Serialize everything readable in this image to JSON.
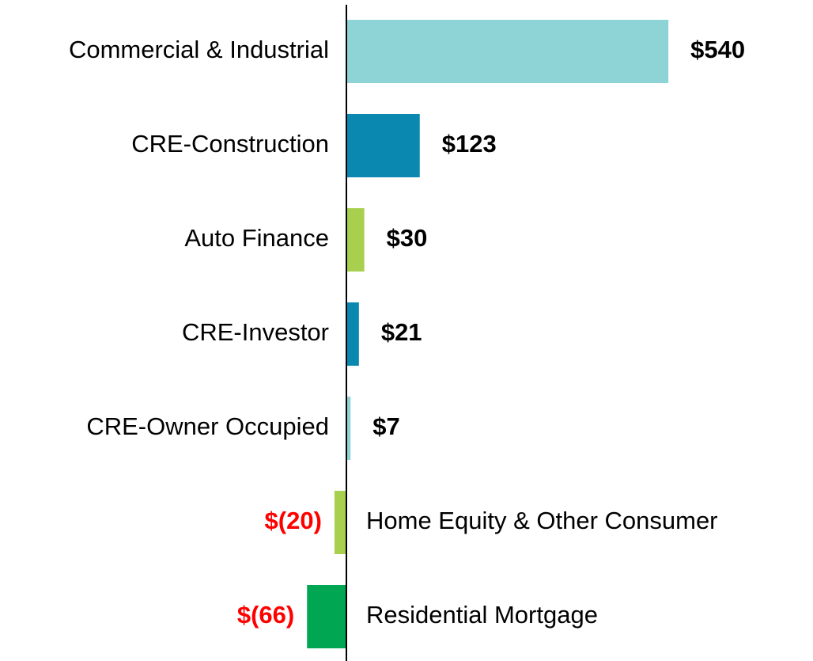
{
  "chart_data": {
    "type": "hbar",
    "categories": [
      "Commercial & Industrial",
      "CRE-Construction",
      "Auto Finance",
      "CRE-Investor",
      "CRE-Owner Occupied",
      "Home Equity & Other Consumer",
      "Residential Mortgage"
    ],
    "values": [
      540,
      123,
      30,
      21,
      7,
      -20,
      -66
    ],
    "value_labels": [
      "$540",
      "$123",
      "$30",
      "$21",
      "$7",
      "$(20)",
      "$(66)"
    ],
    "colors": [
      "#8ed3d6",
      "#0b88b0",
      "#a8cf4e",
      "#0b88b0",
      "#8ed3d6",
      "#a8cf4e",
      "#00a651"
    ],
    "negative_label_color": "#ff0000",
    "xlim": [
      -100,
      700
    ]
  }
}
